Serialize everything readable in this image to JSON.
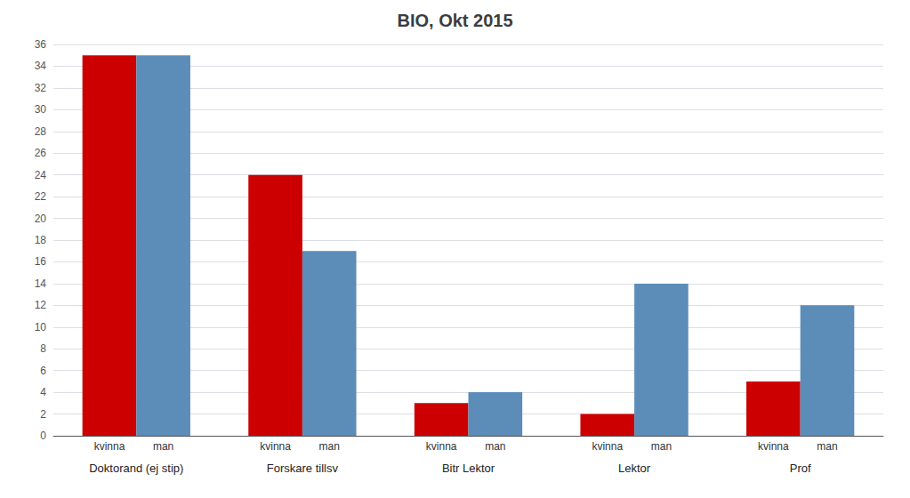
{
  "chart_data": {
    "type": "bar",
    "title": "BIO, Okt 2015",
    "categories": [
      "Doktorand (ej stip)",
      "Forskare tillsv",
      "Bitr Lektor",
      "Lektor",
      "Prof"
    ],
    "series": [
      {
        "name": "kvinna",
        "color": "#CC0000",
        "values": [
          35,
          24,
          3,
          2,
          5
        ]
      },
      {
        "name": "man",
        "color": "#5B8DB8",
        "values": [
          35,
          17,
          4,
          14,
          12
        ]
      }
    ],
    "ylim": [
      0,
      36
    ],
    "yticks": [
      0,
      2,
      4,
      6,
      8,
      10,
      12,
      14,
      16,
      18,
      20,
      22,
      24,
      26,
      28,
      30,
      32,
      34,
      36
    ],
    "grid": true
  }
}
